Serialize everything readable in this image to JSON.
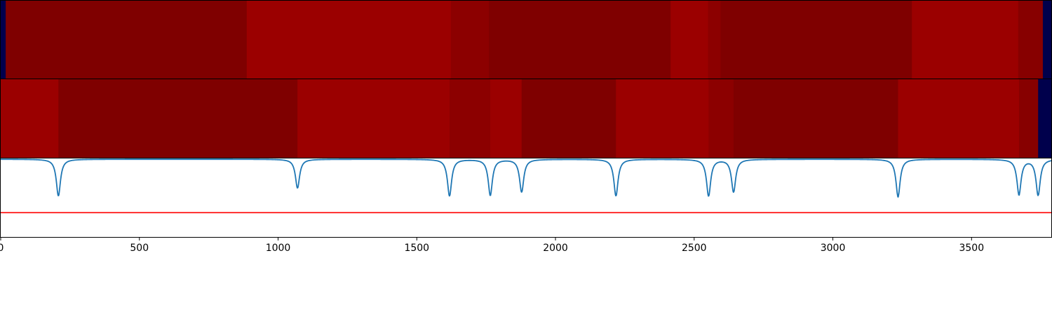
{
  "chart_data": [
    {
      "type": "heatmap",
      "title": "",
      "xlabel": "",
      "ylabel": "",
      "xlim": [
        0,
        3790
      ],
      "background_color": "#00004c",
      "segments": [
        {
          "x0": 0,
          "x1": 18,
          "value": "background",
          "color": "#00004c"
        },
        {
          "x0": 18,
          "x1": 887,
          "value": "dark",
          "color": "#7f0000"
        },
        {
          "x0": 887,
          "x1": 1623,
          "value": "bright",
          "color": "#9b0000"
        },
        {
          "x0": 1623,
          "x1": 1760,
          "value": "medium",
          "color": "#8c0000"
        },
        {
          "x0": 1760,
          "x1": 2415,
          "value": "dark",
          "color": "#7f0000"
        },
        {
          "x0": 2415,
          "x1": 2550,
          "value": "bright",
          "color": "#9b0000"
        },
        {
          "x0": 2550,
          "x1": 2595,
          "value": "medium",
          "color": "#8c0000"
        },
        {
          "x0": 2595,
          "x1": 3285,
          "value": "dark",
          "color": "#7f0000"
        },
        {
          "x0": 3285,
          "x1": 3668,
          "value": "bright",
          "color": "#9b0000"
        },
        {
          "x0": 3668,
          "x1": 3757,
          "value": "medium-dark",
          "color": "#870000"
        },
        {
          "x0": 3757,
          "x1": 3790,
          "value": "background",
          "color": "#00004c"
        }
      ]
    },
    {
      "type": "heatmap",
      "title": "",
      "xlabel": "",
      "ylabel": "",
      "xlim": [
        0,
        3790
      ],
      "background_color": "#00004c",
      "segments": [
        {
          "x0": 0,
          "x1": 208,
          "value": "bright",
          "color": "#9b0000"
        },
        {
          "x0": 208,
          "x1": 1070,
          "value": "dark",
          "color": "#7f0000"
        },
        {
          "x0": 1070,
          "x1": 1618,
          "value": "bright",
          "color": "#9b0000"
        },
        {
          "x0": 1618,
          "x1": 1765,
          "value": "medium",
          "color": "#8c0000"
        },
        {
          "x0": 1765,
          "x1": 1878,
          "value": "bright",
          "color": "#9b0000"
        },
        {
          "x0": 1878,
          "x1": 2218,
          "value": "dark",
          "color": "#7f0000"
        },
        {
          "x0": 2218,
          "x1": 2552,
          "value": "bright",
          "color": "#9b0000"
        },
        {
          "x0": 2552,
          "x1": 2642,
          "value": "medium",
          "color": "#8c0000"
        },
        {
          "x0": 2642,
          "x1": 3235,
          "value": "dark",
          "color": "#7f0000"
        },
        {
          "x0": 3235,
          "x1": 3671,
          "value": "bright",
          "color": "#9b0000"
        },
        {
          "x0": 3671,
          "x1": 3740,
          "value": "medium-dark",
          "color": "#870000"
        },
        {
          "x0": 3740,
          "x1": 3790,
          "value": "background",
          "color": "#00004c"
        }
      ]
    },
    {
      "type": "line",
      "title": "",
      "xlabel": "",
      "ylabel": "",
      "xlim": [
        0,
        3790
      ],
      "ylim": [
        -1.0,
        0.0
      ],
      "x_ticks": [
        0,
        500,
        1000,
        1500,
        2000,
        2500,
        3000,
        3500
      ],
      "x_tick_labels": [
        "0",
        "500",
        "1000",
        "1500",
        "2000",
        "2500",
        "3000",
        "3500"
      ],
      "grid": false,
      "baseline": -0.01,
      "dips": [
        {
          "x": 208,
          "y": -0.48
        },
        {
          "x": 1070,
          "y": -0.38
        },
        {
          "x": 1618,
          "y": -0.48
        },
        {
          "x": 1765,
          "y": -0.47
        },
        {
          "x": 1878,
          "y": -0.43
        },
        {
          "x": 2218,
          "y": -0.48
        },
        {
          "x": 2552,
          "y": -0.48
        },
        {
          "x": 2642,
          "y": -0.43
        },
        {
          "x": 3235,
          "y": -0.49
        },
        {
          "x": 3671,
          "y": -0.46
        },
        {
          "x": 3740,
          "y": -0.47
        }
      ],
      "series": [
        {
          "values_from": "dips",
          "color": "#1f77b4"
        }
      ],
      "threshold": {
        "y": -0.69,
        "color": "#ff0000"
      }
    }
  ]
}
